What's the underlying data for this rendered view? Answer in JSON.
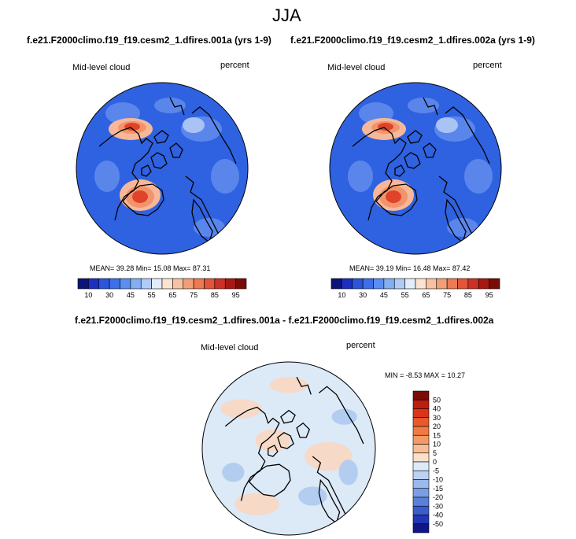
{
  "page": {
    "season": "JJA",
    "left_case": "f.e21.F2000climo.f19_f19.cesm2_1.dfires.001a (yrs 1-9)",
    "right_case": "f.e21.F2000climo.f19_f19.cesm2_1.dfires.002a (yrs 1-9)",
    "diff_case": "f.e21.F2000climo.f19_f19.cesm2_1.dfires.001a - f.e21.F2000climo.f19_f19.cesm2_1.dfires.002a"
  },
  "colors": {
    "ocean_base": "#2f62e0",
    "ocean_light": "#5a86ec",
    "warm_mid": "#f2946b",
    "warm_high": "#e0432a",
    "diff_base": "#dce9f7",
    "diff_warm": "#f7d9c7",
    "diff_cool": "#b3cdf0",
    "coast": "#000000"
  },
  "chart_data": [
    {
      "type": "map",
      "panel": "left",
      "title": "f.e21.F2000climo.f19_f19.cesm2_1.dfires.001a (yrs 1-9)",
      "variable": "Mid-level cloud",
      "units": "percent",
      "stats": {
        "mean": "39.28",
        "min": "15.08",
        "max": "87.31"
      },
      "stats_text": "MEAN=  39.28  Min=  15.08  Max=  87.31",
      "colorbar_levels": [
        10,
        20,
        30,
        40,
        45,
        50,
        55,
        60,
        65,
        70,
        75,
        80,
        85,
        90,
        95
      ],
      "colorbar_tick_labels": [
        "10",
        "30",
        "45",
        "55",
        "65",
        "75",
        "85",
        "95"
      ],
      "colorbar_colors": [
        "#0c1478",
        "#1d2fc0",
        "#2c55dc",
        "#3d6fe8",
        "#5b8ef0",
        "#83aef4",
        "#b0ccf6",
        "#e2ecfa",
        "#fbe3d2",
        "#f6c2a2",
        "#f29f78",
        "#ec7a52",
        "#e2553a",
        "#cd3024",
        "#a81812",
        "#7a0c08"
      ]
    },
    {
      "type": "map",
      "panel": "right",
      "title": "f.e21.F2000climo.f19_f19.cesm2_1.dfires.002a (yrs 1-9)",
      "variable": "Mid-level cloud",
      "units": "percent",
      "stats": {
        "mean": "39.19",
        "min": "16.48",
        "max": "87.42"
      },
      "stats_text": "MEAN=  39.19  Min=  16.48  Max=  87.42",
      "colorbar_levels": [
        10,
        20,
        30,
        40,
        45,
        50,
        55,
        60,
        65,
        70,
        75,
        80,
        85,
        90,
        95
      ],
      "colorbar_tick_labels": [
        "10",
        "30",
        "45",
        "55",
        "65",
        "75",
        "85",
        "95"
      ],
      "colorbar_colors": [
        "#0c1478",
        "#1d2fc0",
        "#2c55dc",
        "#3d6fe8",
        "#5b8ef0",
        "#83aef4",
        "#b0ccf6",
        "#e2ecfa",
        "#fbe3d2",
        "#f6c2a2",
        "#f29f78",
        "#ec7a52",
        "#e2553a",
        "#cd3024",
        "#a81812",
        "#7a0c08"
      ]
    },
    {
      "type": "map",
      "panel": "difference",
      "title": "f.e21.F2000climo.f19_f19.cesm2_1.dfires.001a - f.e21.F2000climo.f19_f19.cesm2_1.dfires.002a",
      "variable": "Mid-level cloud",
      "units": "percent",
      "stats": {
        "min": "-8.53",
        "max": "10.27"
      },
      "stats_text": "MIN =  -8.53 MAX =  10.27",
      "colorbar_levels": [
        50,
        40,
        30,
        20,
        15,
        10,
        5,
        0,
        -5,
        -10,
        -15,
        -20,
        -30,
        -40,
        -50
      ],
      "colorbar_tick_labels": [
        "50",
        "40",
        "30",
        "20",
        "15",
        "10",
        "5",
        "0",
        "-5",
        "-10",
        "-15",
        "-20",
        "-30",
        "-40",
        "-50"
      ],
      "colorbar_colors": [
        "#7a0c08",
        "#c01c10",
        "#dc3418",
        "#e85a2a",
        "#f07a45",
        "#f49a66",
        "#f8bd94",
        "#fbe0c8",
        "#ddeaf8",
        "#bcd2f2",
        "#9ab9ec",
        "#7b9fe4",
        "#5a80da",
        "#3a5ccc",
        "#2136b4",
        "#0e1688"
      ]
    }
  ]
}
